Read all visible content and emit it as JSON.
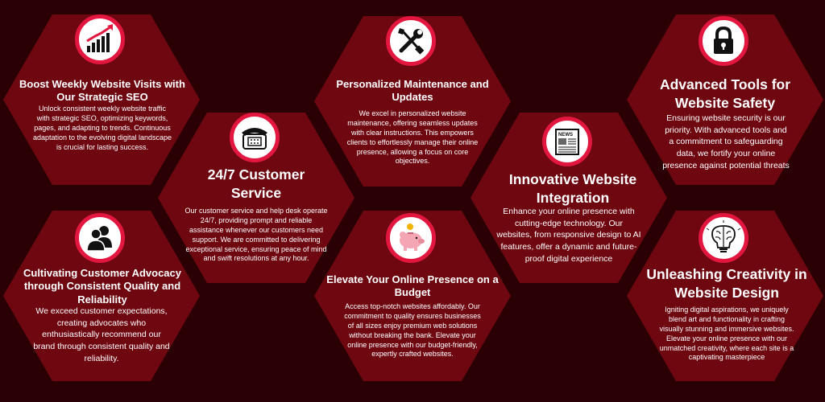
{
  "colors": {
    "background": "#2a0005",
    "hexagon": "#6e0710",
    "badge_ring": "#e3163f",
    "text": "#ffffff"
  },
  "cards": [
    {
      "icon": "bar-chart-growth-icon",
      "title": "Boost Weekly Website Visits with Our Strategic SEO",
      "description": "Unlock consistent weekly website traffic with strategic SEO, optimizing keywords, pages, and adapting to trends. Continuous adaptation to the evolving digital landscape is crucial for lasting success."
    },
    {
      "icon": "telephone-icon",
      "title": "24/7 Customer Service",
      "description": "Our customer service and help desk operate 24/7, providing prompt and reliable assistance whenever our customers need support. We are committed to delivering exceptional service, ensuring peace of mind and swift resolutions at any hour."
    },
    {
      "icon": "wrench-screwdriver-icon",
      "title": "Personalized Maintenance and Updates",
      "description": "We excel in personalized website maintenance, offering seamless updates with clear instructions. This empowers clients to effortlessly manage their online presence, allowing a focus on core objectives."
    },
    {
      "icon": "newspaper-icon",
      "title": "Innovative Website Integration",
      "description": "Enhance your online presence with cutting-edge technology. Our websites, from responsive design to AI features, offer a dynamic and future-proof digital experience",
      "icon_text": "NEWS"
    },
    {
      "icon": "padlock-icon",
      "title": "Advanced Tools for Website Safety",
      "description": "Ensuring website security is our priority. With advanced tools and a commitment to safeguarding data, we fortify your online presence against potential threats"
    },
    {
      "icon": "users-icon",
      "title": "Cultivating Customer Advocacy through Consistent Quality and Reliability",
      "description": "We exceed customer expectations, creating advocates who enthusiastically recommend our brand through consistent quality and reliability."
    },
    {
      "icon": "piggy-bank-icon",
      "title": "Elevate Your Online Presence on a Budget",
      "description": "Access top-notch websites affordably. Our commitment to quality ensures businesses of all sizes enjoy premium web solutions without breaking the bank. Elevate your online presence with our budget-friendly, expertly crafted websites."
    },
    {
      "icon": "brain-lightbulb-icon",
      "title": "Unleashing Creativity in Website Design",
      "description": "Igniting digital aspirations, we uniquely blend art and functionality in crafting visually stunning and immersive websites. Elevate your online presence with our unmatched creativity, where each site is a captivating masterpiece"
    }
  ]
}
